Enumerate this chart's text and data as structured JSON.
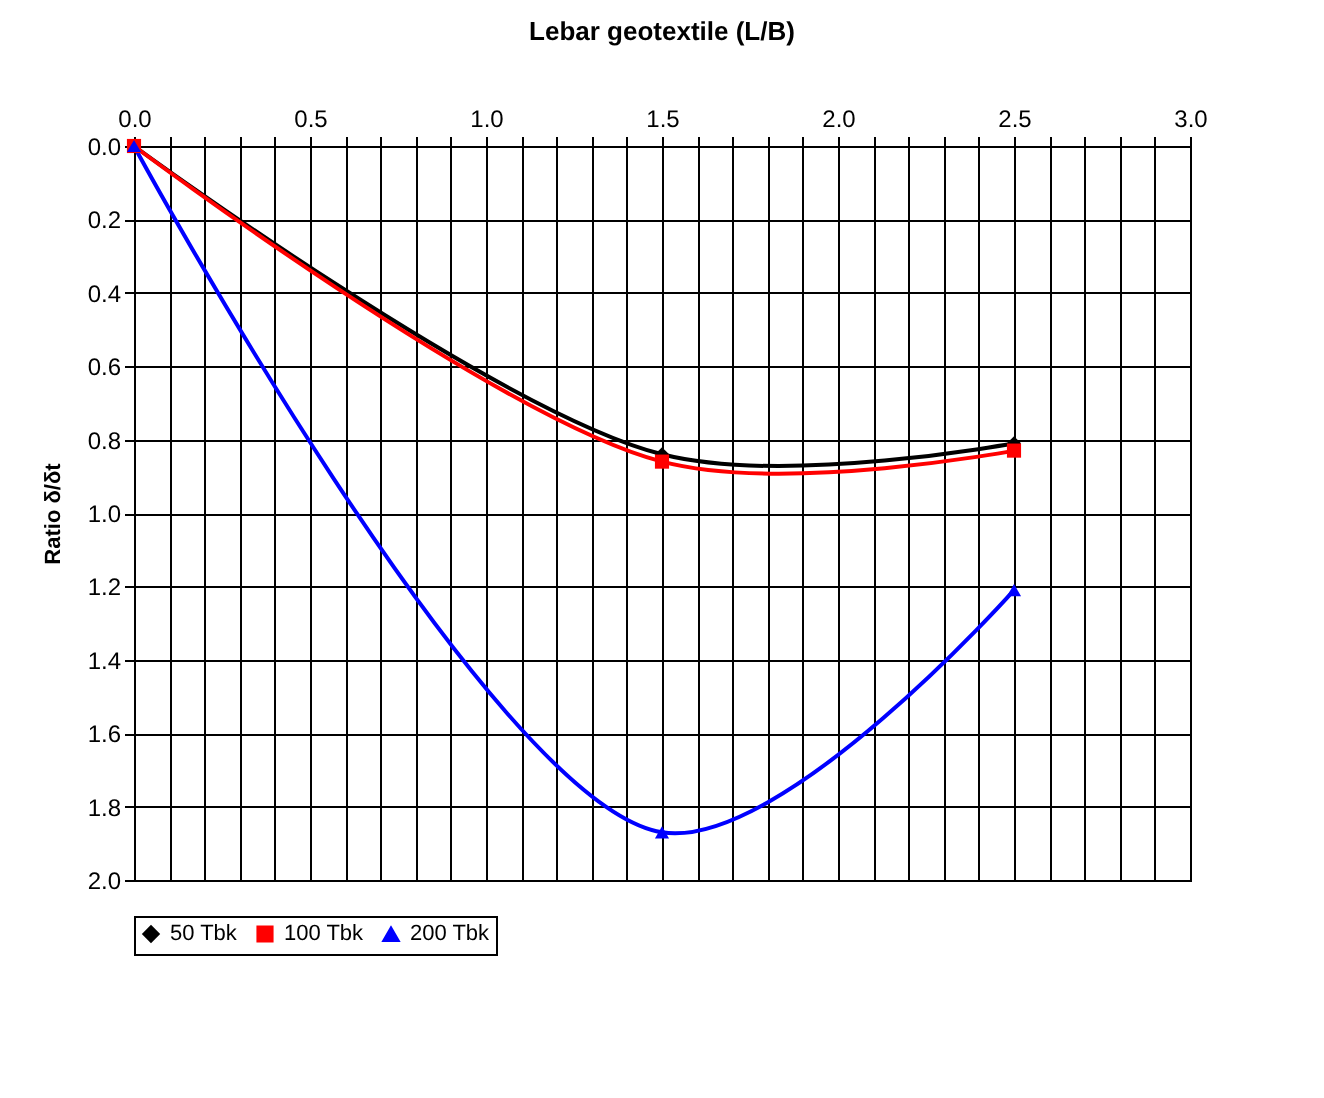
{
  "chart_data": {
    "type": "line",
    "title": "Lebar geotextile (L/B)",
    "ylabel": "Ratio δ/δt",
    "x": [
      0,
      1.5,
      2.5
    ],
    "series": [
      {
        "name": "50 Tbk",
        "color": "#000000",
        "marker": "diamond",
        "values": [
          0,
          0.84,
          0.81
        ]
      },
      {
        "name": "100 Tbk",
        "color": "#ff0000",
        "marker": "square",
        "values": [
          0,
          0.86,
          0.83
        ]
      },
      {
        "name": "200 Tbk",
        "color": "#0000ff",
        "marker": "triangle",
        "values": [
          0,
          1.87,
          1.21
        ]
      }
    ],
    "xlim": [
      0,
      3
    ],
    "xticks": [
      "0.0",
      {
        "value": 0.1,
        "label": null
      },
      {
        "value": 0.2,
        "label": null
      },
      {
        "value": 0.3,
        "label": null
      },
      {
        "value": 0.4,
        "label": null
      },
      {
        "value": 0.5,
        "label": "0.5"
      },
      {
        "value": 0.6,
        "label": null
      },
      {
        "value": 0.7,
        "label": null
      },
      {
        "value": 0.8,
        "label": null
      },
      {
        "value": 0.9,
        "label": null
      },
      {
        "value": 1,
        "label": "1.0"
      },
      {
        "value": 1.1,
        "label": null
      },
      {
        "value": 1.2,
        "label": null
      },
      {
        "value": 1.3,
        "label": null
      },
      {
        "value": 1.4,
        "label": null
      },
      {
        "value": 1.5,
        "label": "1.5"
      },
      {
        "value": 1.6,
        "label": null
      },
      {
        "value": 1.7,
        "label": null
      },
      {
        "value": 1.8,
        "label": null
      },
      {
        "value": 1.9,
        "label": null
      },
      {
        "value": 2,
        "label": "2.0"
      },
      {
        "value": 2.1,
        "label": null
      },
      {
        "value": 2.2,
        "label": null
      },
      {
        "value": 2.3,
        "label": null
      },
      {
        "value": 2.4,
        "label": null
      },
      {
        "value": 2.5,
        "label": "2.5"
      },
      {
        "value": 2.6,
        "label": null
      },
      {
        "value": 2.7,
        "label": null
      },
      {
        "value": 2.8,
        "label": null
      },
      {
        "value": 2.9,
        "label": null
      },
      {
        "value": 3,
        "label": "3.0"
      }
    ],
    "ylim": [
      2,
      0
    ],
    "yticks": [
      {
        "value": 0,
        "label": "0.0"
      },
      {
        "value": 0.2,
        "label": "0.2"
      },
      {
        "value": 0.4,
        "label": "0.4"
      },
      {
        "value": 0.6,
        "label": "0.6"
      },
      {
        "value": 0.8,
        "label": "0.8"
      },
      {
        "value": 1,
        "label": "1.0"
      },
      {
        "value": 1.2,
        "label": "1.2"
      },
      {
        "value": 1.4,
        "label": "1.4"
      },
      {
        "value": 1.6,
        "label": "1.6"
      },
      {
        "value": 1.8,
        "label": "1.8"
      },
      {
        "value": 2,
        "label": "2.0"
      }
    ],
    "grid": true,
    "legend": "bottom",
    "line_style": "solid"
  }
}
